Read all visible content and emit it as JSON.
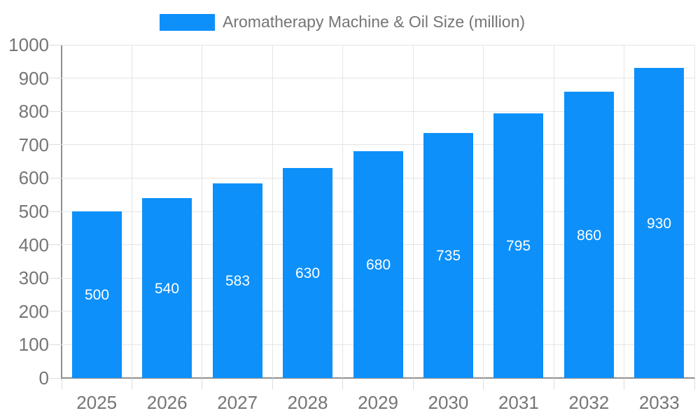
{
  "legend": {
    "label": "Aromatherapy Machine & Oil Size (million)"
  },
  "chart_data": {
    "type": "bar",
    "title": "Aromatherapy Machine & Oil Size (million)",
    "categories": [
      "2025",
      "2026",
      "2027",
      "2028",
      "2029",
      "2030",
      "2031",
      "2032",
      "2033"
    ],
    "values": [
      500,
      540,
      583,
      630,
      680,
      735,
      795,
      860,
      930
    ],
    "value_labels": [
      "500",
      "540",
      "583",
      "630",
      "680",
      "735",
      "795",
      "860",
      "930"
    ],
    "y_ticks": [
      "0",
      "100",
      "200",
      "300",
      "400",
      "500",
      "600",
      "700",
      "800",
      "900",
      "1000"
    ],
    "ylim": [
      0,
      1000
    ],
    "ytick_step": 100,
    "xlabel": "",
    "ylabel": "",
    "grid": true,
    "legend_position": "top",
    "colors": {
      "bar": "#0d90fa",
      "value_label": "#ffffff",
      "axis_text": "#757575",
      "grid_line": "#e4e4e4",
      "axis_line": "#8f8f8f",
      "tick_line": "#dddddd"
    }
  }
}
